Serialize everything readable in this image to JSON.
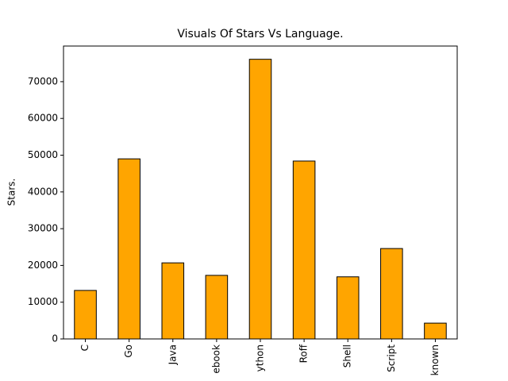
{
  "chart_data": {
    "type": "bar",
    "title": "Visuals Of Stars Vs Language.",
    "y_label": "Stars.",
    "categories": [
      "C",
      "Go",
      "Java",
      "ebook",
      "ython",
      "Roff",
      "Shell",
      "Script",
      "known"
    ],
    "values": [
      13200,
      49000,
      20700,
      17300,
      76100,
      48400,
      16900,
      24600,
      4300
    ],
    "color": "#ffa500",
    "edge_color": "#000000",
    "ylim": [
      0,
      79700
    ],
    "yticks": [
      0,
      10000,
      20000,
      30000,
      40000,
      50000,
      60000,
      70000
    ],
    "grid": false
  }
}
